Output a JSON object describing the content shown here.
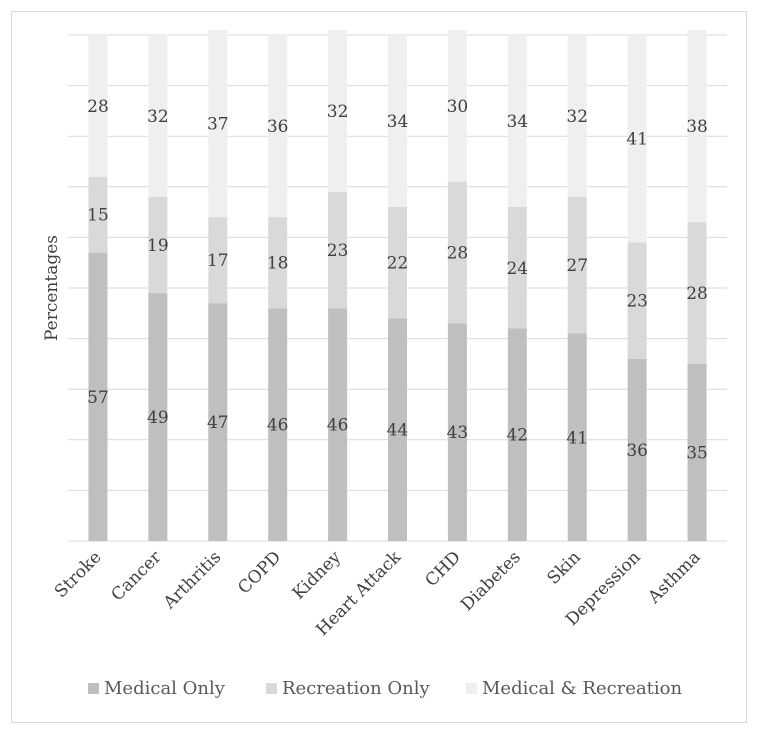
{
  "chart_data": {
    "type": "bar",
    "stacked": true,
    "title": "",
    "xlabel": "",
    "ylabel": "Percentages",
    "ylim": [
      0,
      100
    ],
    "grid": true,
    "legend_position": "bottom",
    "categories": [
      "Stroke",
      "Cancer",
      "Arthritis",
      "COPD",
      "Kidney",
      "Heart Attack",
      "CHD",
      "Diabetes",
      "Skin",
      "Depression",
      "Asthma"
    ],
    "series": [
      {
        "name": "Medical Only",
        "color": "#bfbfbf",
        "values": [
          57,
          49,
          47,
          46,
          46,
          44,
          43,
          42,
          41,
          36,
          35
        ]
      },
      {
        "name": "Recreation Only",
        "color": "#d9d9d9",
        "values": [
          15,
          19,
          17,
          18,
          23,
          22,
          28,
          24,
          27,
          23,
          28
        ]
      },
      {
        "name": "Medical & Recreation",
        "color": "#efefef",
        "values": [
          28,
          32,
          37,
          36,
          32,
          34,
          30,
          34,
          32,
          41,
          38
        ]
      }
    ]
  }
}
